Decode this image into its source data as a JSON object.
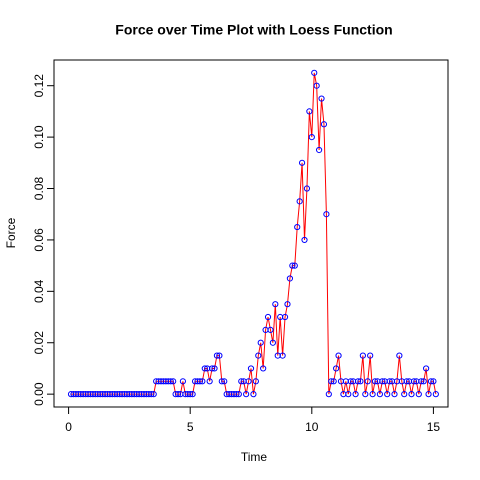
{
  "chart_data": {
    "type": "line",
    "title": "Force over Time Plot with Loess Function",
    "x_label": "Time",
    "y_label": "Force",
    "x": [
      0.1,
      0.2,
      0.3,
      0.4,
      0.5,
      0.6,
      0.7,
      0.8,
      0.9,
      1.0,
      1.1,
      1.2,
      1.3,
      1.4,
      1.5,
      1.6,
      1.7,
      1.8,
      1.9,
      2.0,
      2.1,
      2.2,
      2.3,
      2.4,
      2.5,
      2.6,
      2.7,
      2.8,
      2.9,
      3.0,
      3.1,
      3.2,
      3.3,
      3.4,
      3.5,
      3.6,
      3.7,
      3.8,
      3.9,
      4.0,
      4.1,
      4.2,
      4.3,
      4.4,
      4.5,
      4.6,
      4.7,
      4.8,
      4.9,
      5.0,
      5.1,
      5.2,
      5.3,
      5.4,
      5.5,
      5.6,
      5.7,
      5.8,
      5.9,
      6.0,
      6.1,
      6.2,
      6.3,
      6.4,
      6.5,
      6.6,
      6.7,
      6.8,
      6.9,
      7.0,
      7.1,
      7.2,
      7.3,
      7.4,
      7.5,
      7.6,
      7.7,
      7.8,
      7.9,
      8.0,
      8.1,
      8.2,
      8.3,
      8.4,
      8.5,
      8.6,
      8.7,
      8.8,
      8.9,
      9.0,
      9.1,
      9.2,
      9.3,
      9.4,
      9.5,
      9.6,
      9.7,
      9.8,
      9.9,
      10.0,
      10.1,
      10.2,
      10.3,
      10.4,
      10.5,
      10.6,
      10.7,
      10.8,
      10.9,
      11.0,
      11.1,
      11.2,
      11.3,
      11.4,
      11.5,
      11.6,
      11.7,
      11.8,
      11.9,
      12.0,
      12.1,
      12.2,
      12.3,
      12.4,
      12.5,
      12.6,
      12.7,
      12.8,
      12.9,
      13.0,
      13.1,
      13.2,
      13.3,
      13.4,
      13.5,
      13.6,
      13.7,
      13.8,
      13.9,
      14.0,
      14.1,
      14.2,
      14.3,
      14.4,
      14.5,
      14.6,
      14.7,
      14.8,
      14.9,
      15.0,
      15.1
    ],
    "series": [
      {
        "line_color": "#ff0000",
        "point_color": "#0000ff",
        "values": [
          0,
          0,
          0,
          0,
          0,
          0,
          0,
          0,
          0,
          0,
          0,
          0,
          0,
          0,
          0,
          0,
          0,
          0,
          0,
          0,
          0,
          0,
          0,
          0,
          0,
          0,
          0,
          0,
          0,
          0,
          0,
          0,
          0,
          0,
          0,
          0.005,
          0.005,
          0.005,
          0.005,
          0.005,
          0.005,
          0.005,
          0.005,
          0,
          0,
          0,
          0.005,
          0,
          0,
          0,
          0,
          0.005,
          0.005,
          0.005,
          0.005,
          0.01,
          0.01,
          0.005,
          0.01,
          0.01,
          0.015,
          0.015,
          0.005,
          0.005,
          0,
          0,
          0,
          0,
          0,
          0,
          0.005,
          0.005,
          0,
          0.005,
          0.01,
          0,
          0.005,
          0.015,
          0.02,
          0.01,
          0.025,
          0.03,
          0.025,
          0.02,
          0.035,
          0.015,
          0.03,
          0.015,
          0.03,
          0.035,
          0.045,
          0.05,
          0.05,
          0.065,
          0.075,
          0.09,
          0.06,
          0.08,
          0.11,
          0.1,
          0.125,
          0.12,
          0.095,
          0.115,
          0.105,
          0.07,
          0,
          0.005,
          0.005,
          0.01,
          0.015,
          0.005,
          0,
          0.005,
          0,
          0.005,
          0.005,
          0,
          0.005,
          0.005,
          0.015,
          0,
          0.005,
          0.015,
          0,
          0.005,
          0.005,
          0,
          0.005,
          0.005,
          0,
          0.005,
          0.005,
          0,
          0.005,
          0.015,
          0.005,
          0,
          0.005,
          0.005,
          0,
          0.005,
          0.005,
          0,
          0.005,
          0.005,
          0.01,
          0,
          0.005,
          0.005,
          0
        ]
      }
    ],
    "xlim": [
      -0.6,
      15.6
    ],
    "ylim": [
      -0.005,
      0.13
    ],
    "xticks": [
      0,
      5,
      10,
      15
    ],
    "yticks": [
      {
        "value": 0,
        "label": "0.00"
      },
      {
        "value": 0.02,
        "label": "0.02"
      },
      {
        "value": 0.04,
        "label": "0.04"
      },
      {
        "value": 0.06,
        "label": "0.06"
      },
      {
        "value": 0.08,
        "label": "0.08"
      },
      {
        "value": 0.1,
        "label": "0.10"
      },
      {
        "value": 0.12,
        "label": "0.12"
      }
    ]
  }
}
